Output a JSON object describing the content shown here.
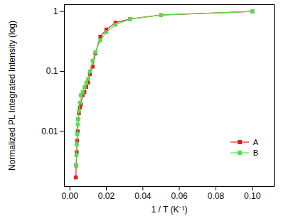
{
  "chart_data": {
    "type": "line",
    "x_label": "1 / T (K⁻¹)",
    "y_label": "Normalized PL Integrated Intensity (log)",
    "log": "y",
    "xlim": [
      -0.003,
      0.112
    ],
    "xticks": [
      {
        "value": 0,
        "label": "0.00"
      },
      {
        "value": 0.02,
        "label": "0.02"
      },
      {
        "value": 0.04,
        "label": "0.04"
      },
      {
        "value": 0.06,
        "label": "0.06"
      },
      {
        "value": 0.08,
        "label": "0.08"
      },
      {
        "value": 0.1,
        "label": "0.10"
      }
    ],
    "ylim": [
      0.0012,
      1.3
    ],
    "yticks": [
      0.01,
      0.1,
      1
    ],
    "grid": false,
    "legend": "lower right",
    "series": [
      {
        "name": "A",
        "color": "#e0201b",
        "marker": "square",
        "line_style": "solid",
        "x": [
          0.0033,
          0.0035,
          0.0038,
          0.004,
          0.0043,
          0.0046,
          0.005,
          0.0055,
          0.006,
          0.007,
          0.008,
          0.009,
          0.01,
          0.011,
          0.0125,
          0.014,
          0.0167,
          0.02,
          0.025,
          0.033,
          0.05,
          0.1
        ],
        "values": [
          0.0017,
          0.0027,
          0.0045,
          0.007,
          0.01,
          0.016,
          0.02,
          0.025,
          0.028,
          0.04,
          0.045,
          0.055,
          0.065,
          0.09,
          0.12,
          0.2,
          0.38,
          0.5,
          0.65,
          0.75,
          0.87,
          1.0
        ]
      },
      {
        "name": "B",
        "color": "#4fe04f",
        "marker": "square",
        "line_style": "solid",
        "x": [
          0.0034,
          0.0036,
          0.0038,
          0.004,
          0.0043,
          0.0046,
          0.005,
          0.0055,
          0.006,
          0.007,
          0.008,
          0.009,
          0.01,
          0.011,
          0.0125,
          0.014,
          0.0167,
          0.02,
          0.025,
          0.033,
          0.05,
          0.1
        ],
        "values": [
          0.0027,
          0.004,
          0.006,
          0.009,
          0.013,
          0.016,
          0.022,
          0.03,
          0.04,
          0.045,
          0.055,
          0.065,
          0.075,
          0.1,
          0.15,
          0.21,
          0.33,
          0.45,
          0.6,
          0.75,
          0.87,
          1.0
        ]
      }
    ]
  }
}
